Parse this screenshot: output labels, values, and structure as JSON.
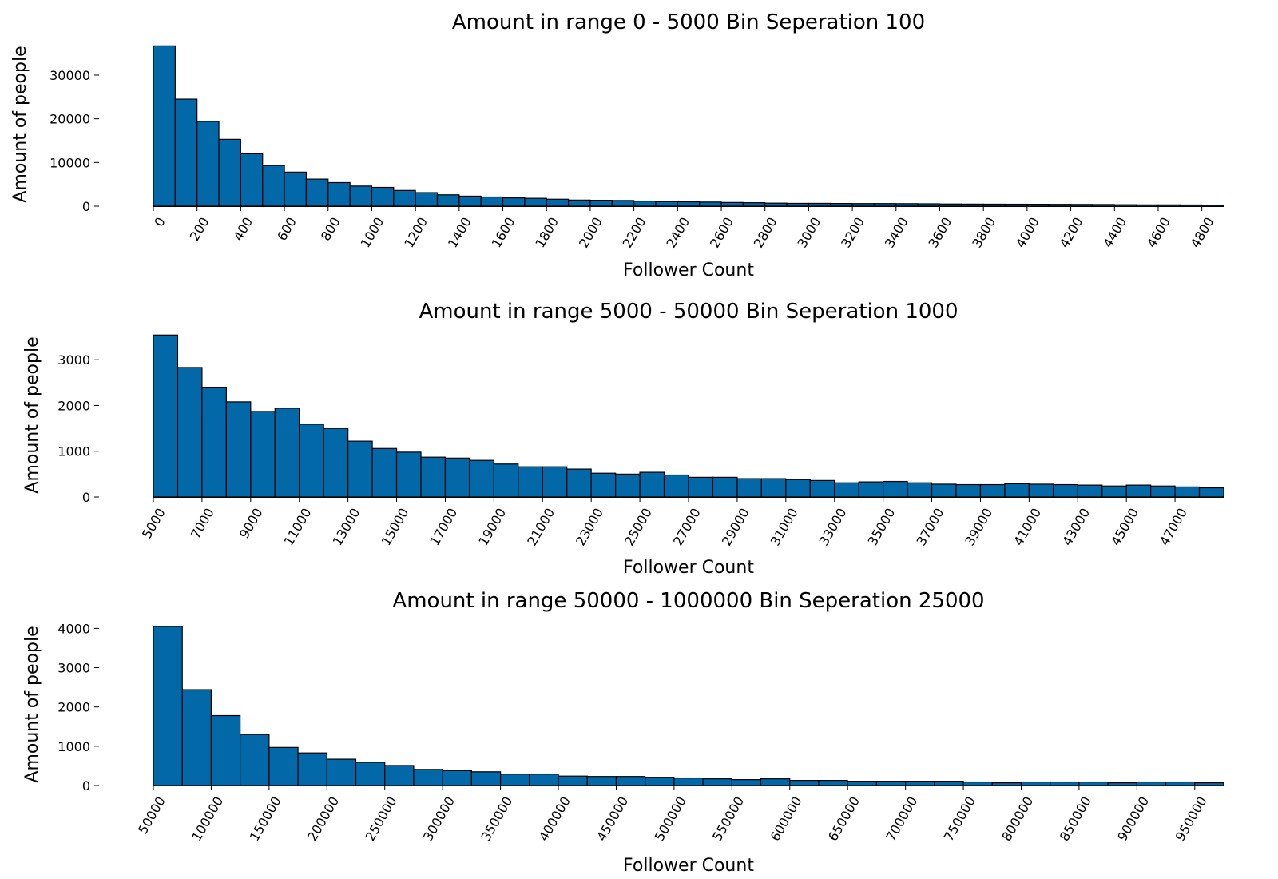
{
  "chart_data": [
    {
      "type": "bar",
      "title": "Amount in range 0 - 5000 Bin Seperation 100",
      "xlabel": "Follower Count",
      "ylabel": "Amount of people",
      "x_start": 0,
      "bin_width": 100,
      "xlim": [
        0,
        4900
      ],
      "ylim": [
        0,
        37500
      ],
      "yticks": [
        0,
        10000,
        20000,
        30000
      ],
      "xticks": [
        0,
        200,
        400,
        600,
        800,
        1000,
        1200,
        1400,
        1600,
        1800,
        2000,
        2200,
        2400,
        2600,
        2800,
        3000,
        3200,
        3400,
        3600,
        3800,
        4000,
        4200,
        4400,
        4600,
        4800
      ],
      "values": [
        36700,
        24500,
        19400,
        15300,
        12000,
        9300,
        7800,
        6200,
        5400,
        4600,
        4300,
        3600,
        3100,
        2600,
        2300,
        2100,
        1900,
        1800,
        1600,
        1400,
        1350,
        1300,
        1150,
        1050,
        1000,
        950,
        850,
        800,
        700,
        650,
        650,
        620,
        600,
        600,
        580,
        550,
        500,
        480,
        460,
        450,
        440,
        420,
        400,
        380,
        330,
        300,
        300,
        280,
        260
      ]
    },
    {
      "type": "bar",
      "title": "Amount in range 5000 - 50000 Bin Seperation 1000",
      "xlabel": "Follower Count",
      "ylabel": "Amount of people",
      "x_start": 5000,
      "bin_width": 1000,
      "xlim": [
        5000,
        49000
      ],
      "ylim": [
        0,
        3580
      ],
      "yticks": [
        0,
        1000,
        2000,
        3000
      ],
      "xticks": [
        5000,
        7000,
        9000,
        11000,
        13000,
        15000,
        17000,
        19000,
        21000,
        23000,
        25000,
        27000,
        29000,
        31000,
        33000,
        35000,
        37000,
        39000,
        41000,
        43000,
        45000,
        47000
      ],
      "values": [
        3540,
        2830,
        2400,
        2080,
        1870,
        1940,
        1590,
        1500,
        1220,
        1060,
        980,
        870,
        850,
        800,
        720,
        660,
        660,
        610,
        520,
        500,
        540,
        480,
        430,
        430,
        400,
        400,
        380,
        360,
        310,
        330,
        340,
        310,
        280,
        270,
        270,
        290,
        280,
        270,
        260,
        240,
        260,
        240,
        220,
        200
      ]
    },
    {
      "type": "bar",
      "title": "Amount in range 50000 - 1000000 Bin Seperation 25000",
      "xlabel": "Follower Count",
      "ylabel": "Amount of people",
      "x_start": 50000,
      "bin_width": 25000,
      "xlim": [
        50000,
        975000
      ],
      "ylim": [
        0,
        4130
      ],
      "yticks": [
        0,
        1000,
        2000,
        3000,
        4000
      ],
      "xticks": [
        50000,
        100000,
        150000,
        200000,
        250000,
        300000,
        350000,
        400000,
        450000,
        500000,
        550000,
        600000,
        650000,
        700000,
        750000,
        800000,
        850000,
        900000,
        950000
      ],
      "values": [
        4050,
        2440,
        1780,
        1300,
        970,
        830,
        670,
        590,
        510,
        410,
        380,
        350,
        290,
        290,
        240,
        230,
        230,
        210,
        190,
        170,
        150,
        170,
        130,
        130,
        110,
        110,
        110,
        110,
        90,
        70,
        90,
        90,
        90,
        70,
        90,
        90,
        70
      ]
    }
  ]
}
